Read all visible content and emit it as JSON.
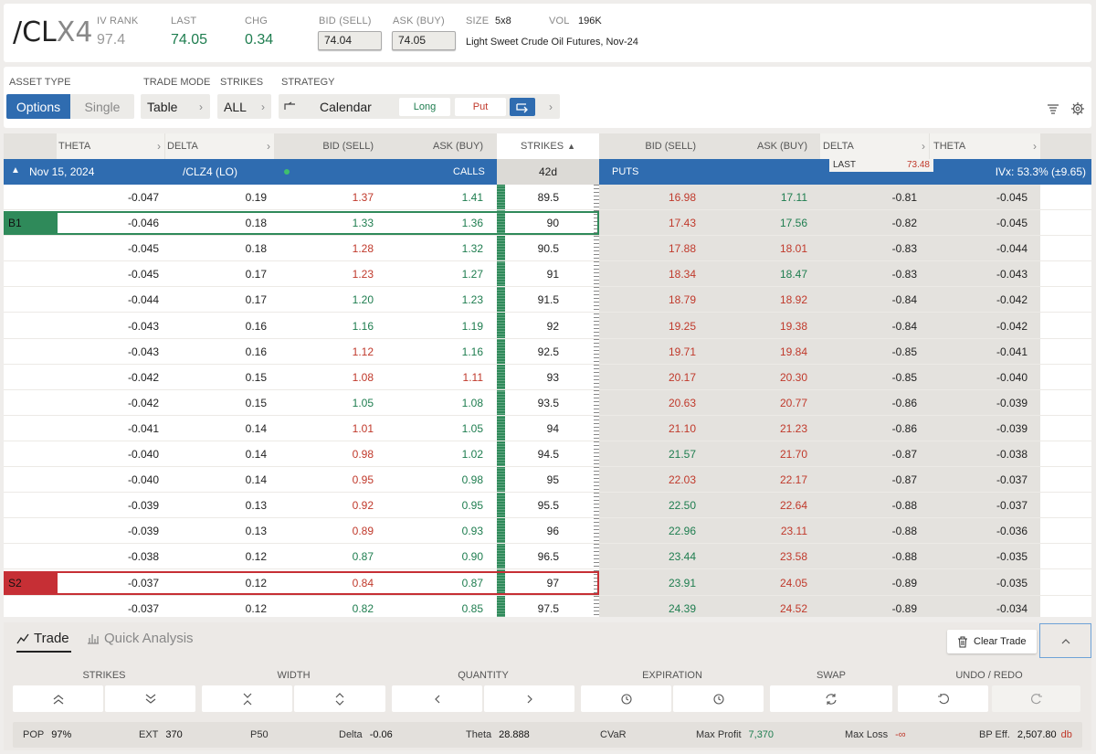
{
  "header": {
    "symbol_main": "/CL",
    "symbol_suffix": "X4",
    "iv_rank_label": "IV RANK",
    "iv_rank": "97.4",
    "last_label": "LAST",
    "last": "74.05",
    "chg_label": "CHG",
    "chg": "0.34",
    "bid_label": "BID (SELL)",
    "bid": "74.04",
    "ask_label": "ASK (BUY)",
    "ask": "74.05",
    "size_label": "SIZE",
    "size": "5x8",
    "vol_label": "VOL",
    "vol": "196K",
    "description": "Light Sweet Crude Oil Futures, Nov-24"
  },
  "controls": {
    "asset_type_label": "ASSET TYPE",
    "options": "Options",
    "single": "Single",
    "trade_mode_label": "TRADE MODE",
    "trade_mode": "Table",
    "strikes_label": "STRIKES",
    "strikes": "ALL",
    "strategy_label": "STRATEGY",
    "strategy": "Calendar",
    "long": "Long",
    "put": "Put",
    "chevron": "›"
  },
  "table": {
    "headers": {
      "theta": "THETA",
      "delta": "DELTA",
      "bid": "BID (SELL)",
      "ask": "ASK (BUY)",
      "strikes": "STRIKES",
      "put_bid": "BID (SELL)",
      "put_ask": "ASK (BUY)",
      "put_delta": "DELTA",
      "put_theta": "THETA"
    },
    "expiry_row": {
      "date": "Nov 15, 2024",
      "contract": "/CLZ4 (LO)",
      "calls": "CALLS",
      "dte": "42d",
      "puts": "PUTS",
      "last_label": "LAST",
      "last": "73.48",
      "ivx": "IVx: 53.3% (±9.65)"
    },
    "leg_labels": {
      "b1": "B1",
      "s2": "S2"
    },
    "rows": [
      {
        "ct": "-0.047",
        "cd": "0.19",
        "cb": "1.37",
        "cbc": "red",
        "ca": "1.41",
        "cac": "green",
        "k": "89.5",
        "pb": "16.98",
        "pbc": "red",
        "pa": "17.11",
        "pac": "green",
        "pd": "-0.81",
        "pt": "-0.045"
      },
      {
        "ct": "-0.046",
        "cd": "0.18",
        "cb": "1.33",
        "cbc": "green",
        "ca": "1.36",
        "cac": "green",
        "k": "90",
        "pb": "17.43",
        "pbc": "red",
        "pa": "17.56",
        "pac": "green",
        "pd": "-0.82",
        "pt": "-0.045",
        "leg": "b1"
      },
      {
        "ct": "-0.045",
        "cd": "0.18",
        "cb": "1.28",
        "cbc": "red",
        "ca": "1.32",
        "cac": "green",
        "k": "90.5",
        "pb": "17.88",
        "pbc": "red",
        "pa": "18.01",
        "pac": "red",
        "pd": "-0.83",
        "pt": "-0.044"
      },
      {
        "ct": "-0.045",
        "cd": "0.17",
        "cb": "1.23",
        "cbc": "red",
        "ca": "1.27",
        "cac": "green",
        "k": "91",
        "pb": "18.34",
        "pbc": "red",
        "pa": "18.47",
        "pac": "green",
        "pd": "-0.83",
        "pt": "-0.043"
      },
      {
        "ct": "-0.044",
        "cd": "0.17",
        "cb": "1.20",
        "cbc": "green",
        "ca": "1.23",
        "cac": "green",
        "k": "91.5",
        "pb": "18.79",
        "pbc": "red",
        "pa": "18.92",
        "pac": "red",
        "pd": "-0.84",
        "pt": "-0.042"
      },
      {
        "ct": "-0.043",
        "cd": "0.16",
        "cb": "1.16",
        "cbc": "green",
        "ca": "1.19",
        "cac": "green",
        "k": "92",
        "pb": "19.25",
        "pbc": "red",
        "pa": "19.38",
        "pac": "red",
        "pd": "-0.84",
        "pt": "-0.042"
      },
      {
        "ct": "-0.043",
        "cd": "0.16",
        "cb": "1.12",
        "cbc": "red",
        "ca": "1.16",
        "cac": "green",
        "k": "92.5",
        "pb": "19.71",
        "pbc": "red",
        "pa": "19.84",
        "pac": "red",
        "pd": "-0.85",
        "pt": "-0.041"
      },
      {
        "ct": "-0.042",
        "cd": "0.15",
        "cb": "1.08",
        "cbc": "red",
        "ca": "1.11",
        "cac": "red",
        "k": "93",
        "pb": "20.17",
        "pbc": "red",
        "pa": "20.30",
        "pac": "red",
        "pd": "-0.85",
        "pt": "-0.040"
      },
      {
        "ct": "-0.042",
        "cd": "0.15",
        "cb": "1.05",
        "cbc": "green",
        "ca": "1.08",
        "cac": "green",
        "k": "93.5",
        "pb": "20.63",
        "pbc": "red",
        "pa": "20.77",
        "pac": "red",
        "pd": "-0.86",
        "pt": "-0.039"
      },
      {
        "ct": "-0.041",
        "cd": "0.14",
        "cb": "1.01",
        "cbc": "red",
        "ca": "1.05",
        "cac": "green",
        "k": "94",
        "pb": "21.10",
        "pbc": "red",
        "pa": "21.23",
        "pac": "red",
        "pd": "-0.86",
        "pt": "-0.039"
      },
      {
        "ct": "-0.040",
        "cd": "0.14",
        "cb": "0.98",
        "cbc": "red",
        "ca": "1.02",
        "cac": "green",
        "k": "94.5",
        "pb": "21.57",
        "pbc": "green",
        "pa": "21.70",
        "pac": "red",
        "pd": "-0.87",
        "pt": "-0.038"
      },
      {
        "ct": "-0.040",
        "cd": "0.14",
        "cb": "0.95",
        "cbc": "red",
        "ca": "0.98",
        "cac": "green",
        "k": "95",
        "pb": "22.03",
        "pbc": "red",
        "pa": "22.17",
        "pac": "red",
        "pd": "-0.87",
        "pt": "-0.037"
      },
      {
        "ct": "-0.039",
        "cd": "0.13",
        "cb": "0.92",
        "cbc": "red",
        "ca": "0.95",
        "cac": "green",
        "k": "95.5",
        "pb": "22.50",
        "pbc": "green",
        "pa": "22.64",
        "pac": "red",
        "pd": "-0.88",
        "pt": "-0.037"
      },
      {
        "ct": "-0.039",
        "cd": "0.13",
        "cb": "0.89",
        "cbc": "red",
        "ca": "0.93",
        "cac": "green",
        "k": "96",
        "pb": "22.96",
        "pbc": "green",
        "pa": "23.11",
        "pac": "red",
        "pd": "-0.88",
        "pt": "-0.036"
      },
      {
        "ct": "-0.038",
        "cd": "0.12",
        "cb": "0.87",
        "cbc": "green",
        "ca": "0.90",
        "cac": "green",
        "k": "96.5",
        "pb": "23.44",
        "pbc": "green",
        "pa": "23.58",
        "pac": "red",
        "pd": "-0.88",
        "pt": "-0.035"
      },
      {
        "ct": "-0.037",
        "cd": "0.12",
        "cb": "0.84",
        "cbc": "red",
        "ca": "0.87",
        "cac": "green",
        "k": "97",
        "pb": "23.91",
        "pbc": "green",
        "pa": "24.05",
        "pac": "red",
        "pd": "-0.89",
        "pt": "-0.035",
        "leg": "s2"
      },
      {
        "ct": "-0.037",
        "cd": "0.12",
        "cb": "0.82",
        "cbc": "green",
        "ca": "0.85",
        "cac": "green",
        "k": "97.5",
        "pb": "24.39",
        "pbc": "green",
        "pa": "24.52",
        "pac": "red",
        "pd": "-0.89",
        "pt": "-0.034"
      }
    ]
  },
  "bottom": {
    "tab_trade": "Trade",
    "tab_quick": "Quick Analysis",
    "clear_trade": "Clear Trade",
    "groups": {
      "strikes": "STRIKES",
      "width": "WIDTH",
      "quantity": "QUANTITY",
      "expiration": "EXPIRATION",
      "swap": "SWAP",
      "undo_redo": "UNDO / REDO"
    },
    "stats": {
      "pop_label": "POP",
      "pop": "97%",
      "ext_label": "EXT",
      "ext": "370",
      "p50_label": "P50",
      "delta_label": "Delta",
      "delta": "-0.06",
      "theta_label": "Theta",
      "theta": "28.888",
      "cvar_label": "CVaR",
      "max_profit_label": "Max Profit",
      "max_profit": "7,370",
      "max_loss_label": "Max Loss",
      "max_loss": "-∞",
      "bp_label": "BP Eff.",
      "bp": "2,507.80",
      "bp_suffix": "db"
    }
  },
  "colors": {
    "blue": "#2f6cb0",
    "green": "#1e7d4f",
    "red": "#c0392b"
  }
}
